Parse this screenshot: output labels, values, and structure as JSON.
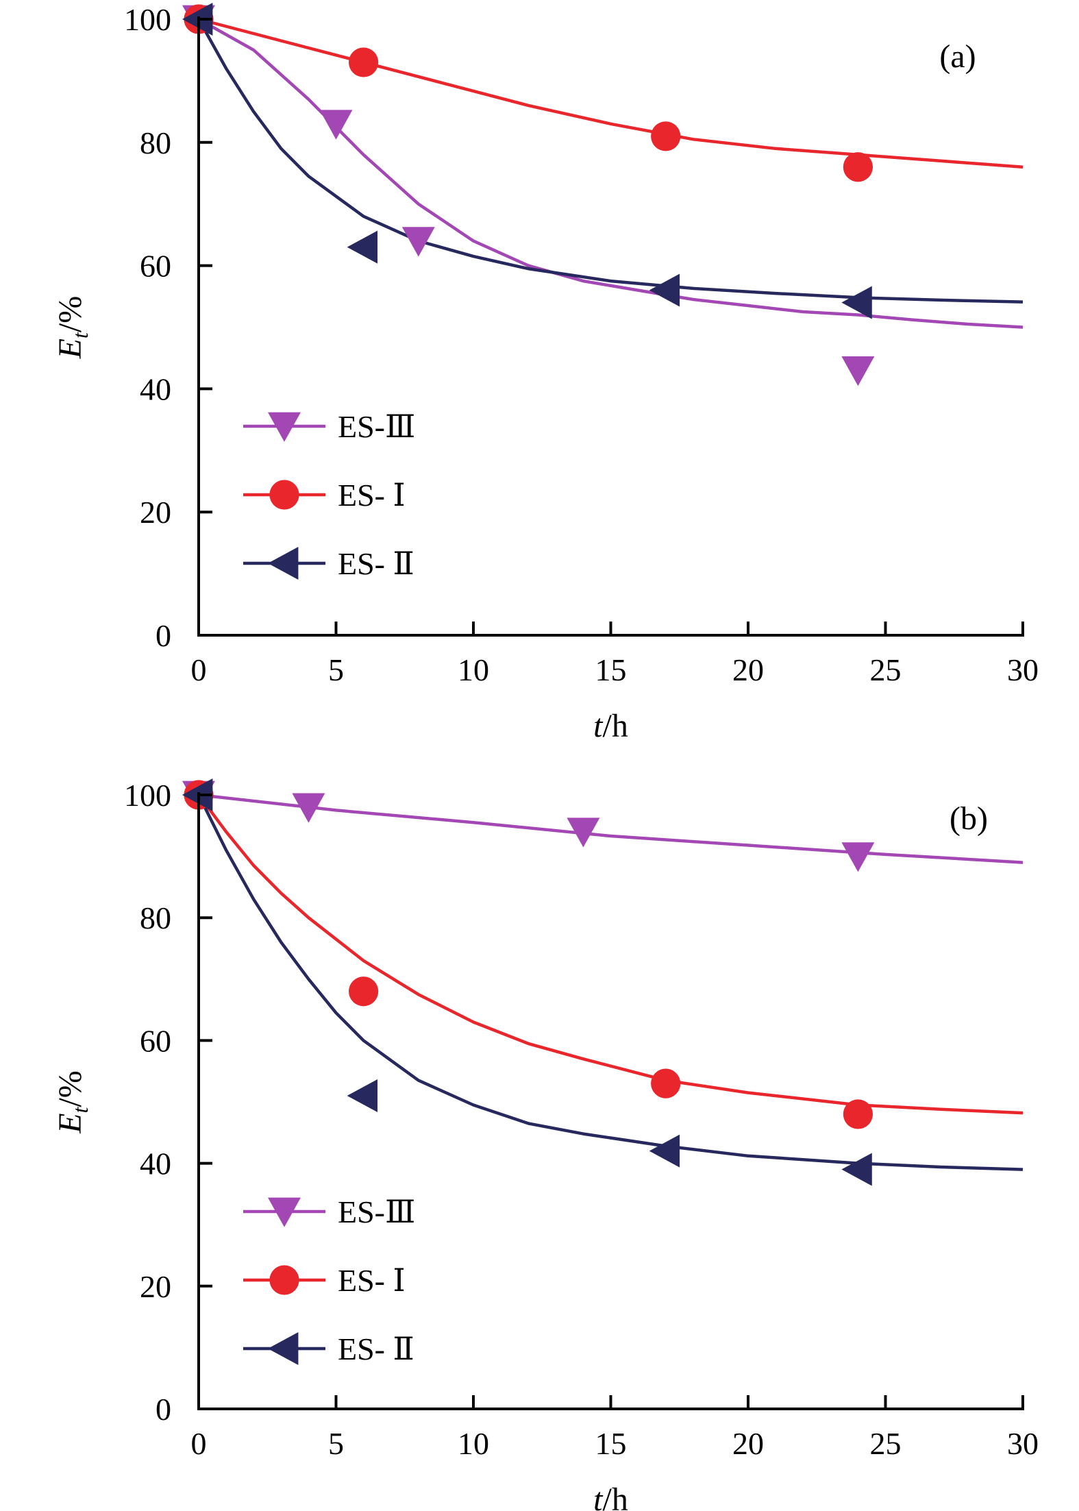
{
  "chart_data": [
    {
      "type": "line",
      "panel_label": "(a)",
      "xlabel_var": "t",
      "xlabel_unit": "/h",
      "ylabel_var": "E",
      "ylabel_sub": "t",
      "ylabel_unit": "/%",
      "xlim": [
        0,
        30
      ],
      "ylim": [
        0,
        100
      ],
      "xticks": [
        0,
        5,
        10,
        15,
        20,
        25,
        30
      ],
      "yticks": [
        0,
        20,
        40,
        60,
        80,
        100
      ],
      "grid": false,
      "legend_position": "bottom-left",
      "series": [
        {
          "name": "ES-Ⅲ",
          "color": "#a347b5",
          "marker": "triangle-down",
          "points": [
            [
              0,
              100
            ],
            [
              5,
              83
            ],
            [
              8,
              64
            ],
            [
              24,
              43
            ]
          ],
          "fit": [
            [
              0,
              100
            ],
            [
              2,
              95
            ],
            [
              4,
              87
            ],
            [
              6,
              78
            ],
            [
              8,
              70
            ],
            [
              10,
              64
            ],
            [
              12,
              60
            ],
            [
              14,
              57.5
            ],
            [
              16,
              56
            ],
            [
              18,
              54.5
            ],
            [
              20,
              53.5
            ],
            [
              22,
              52.5
            ],
            [
              24,
              52
            ],
            [
              26,
              51.2
            ],
            [
              28,
              50.5
            ],
            [
              30,
              50
            ]
          ]
        },
        {
          "name": "ES- Ⅰ",
          "color": "#e8262b",
          "marker": "circle",
          "points": [
            [
              0,
              100
            ],
            [
              6,
              93
            ],
            [
              17,
              81
            ],
            [
              24,
              76
            ]
          ],
          "fit": [
            [
              0,
              100
            ],
            [
              3,
              96.5
            ],
            [
              6,
              93
            ],
            [
              9,
              89.5
            ],
            [
              12,
              86
            ],
            [
              15,
              83
            ],
            [
              18,
              80.5
            ],
            [
              21,
              79
            ],
            [
              24,
              78
            ],
            [
              27,
              77
            ],
            [
              30,
              76
            ]
          ]
        },
        {
          "name": "ES- Ⅱ",
          "color": "#27285e",
          "marker": "triangle-left",
          "points": [
            [
              0,
              100
            ],
            [
              6,
              63
            ],
            [
              17,
              56
            ],
            [
              24,
              54
            ]
          ],
          "fit": [
            [
              0,
              100
            ],
            [
              1,
              92
            ],
            [
              2,
              85
            ],
            [
              3,
              79
            ],
            [
              4,
              74.5
            ],
            [
              6,
              68
            ],
            [
              8,
              64
            ],
            [
              10,
              61.5
            ],
            [
              12,
              59.5
            ],
            [
              15,
              57.5
            ],
            [
              18,
              56.3
            ],
            [
              21,
              55.5
            ],
            [
              24,
              54.8
            ],
            [
              27,
              54.4
            ],
            [
              30,
              54.1
            ]
          ]
        }
      ]
    },
    {
      "type": "line",
      "panel_label": "(b)",
      "xlabel_var": "t",
      "xlabel_unit": "/h",
      "ylabel_var": "E",
      "ylabel_sub": "t",
      "ylabel_unit": "/%",
      "xlim": [
        0,
        30
      ],
      "ylim": [
        0,
        100
      ],
      "xticks": [
        0,
        5,
        10,
        15,
        20,
        25,
        30
      ],
      "yticks": [
        0,
        20,
        40,
        60,
        80,
        100
      ],
      "grid": false,
      "legend_position": "bottom-left",
      "series": [
        {
          "name": "ES-Ⅲ",
          "color": "#a347b5",
          "marker": "triangle-down",
          "points": [
            [
              0,
              100
            ],
            [
              4,
              98
            ],
            [
              14,
              94
            ],
            [
              24,
              90
            ]
          ],
          "fit": [
            [
              0,
              100
            ],
            [
              5,
              97.5
            ],
            [
              10,
              95.5
            ],
            [
              15,
              93.3
            ],
            [
              20,
              91.8
            ],
            [
              25,
              90.3
            ],
            [
              30,
              89
            ]
          ]
        },
        {
          "name": "ES- Ⅰ",
          "color": "#e8262b",
          "marker": "circle",
          "points": [
            [
              0,
              100
            ],
            [
              6,
              68
            ],
            [
              17,
              53
            ],
            [
              24,
              48
            ]
          ],
          "fit": [
            [
              0,
              100
            ],
            [
              1,
              94
            ],
            [
              2,
              88.5
            ],
            [
              3,
              84
            ],
            [
              4,
              80
            ],
            [
              6,
              73
            ],
            [
              8,
              67.5
            ],
            [
              10,
              63
            ],
            [
              12,
              59.5
            ],
            [
              14,
              57
            ],
            [
              17,
              53.5
            ],
            [
              20,
              51.5
            ],
            [
              24,
              49.5
            ],
            [
              27,
              48.8
            ],
            [
              30,
              48.2
            ]
          ]
        },
        {
          "name": "ES- Ⅱ",
          "color": "#27285e",
          "marker": "triangle-left",
          "points": [
            [
              0,
              100
            ],
            [
              6,
              51
            ],
            [
              17,
              42
            ],
            [
              24,
              39
            ]
          ],
          "fit": [
            [
              0,
              100
            ],
            [
              1,
              91
            ],
            [
              2,
              83
            ],
            [
              3,
              76
            ],
            [
              4,
              70
            ],
            [
              5,
              64.5
            ],
            [
              6,
              60
            ],
            [
              8,
              53.5
            ],
            [
              10,
              49.5
            ],
            [
              12,
              46.5
            ],
            [
              14,
              44.8
            ],
            [
              17,
              42.8
            ],
            [
              20,
              41.2
            ],
            [
              24,
              40
            ],
            [
              27,
              39.4
            ],
            [
              30,
              39
            ]
          ]
        }
      ]
    }
  ]
}
